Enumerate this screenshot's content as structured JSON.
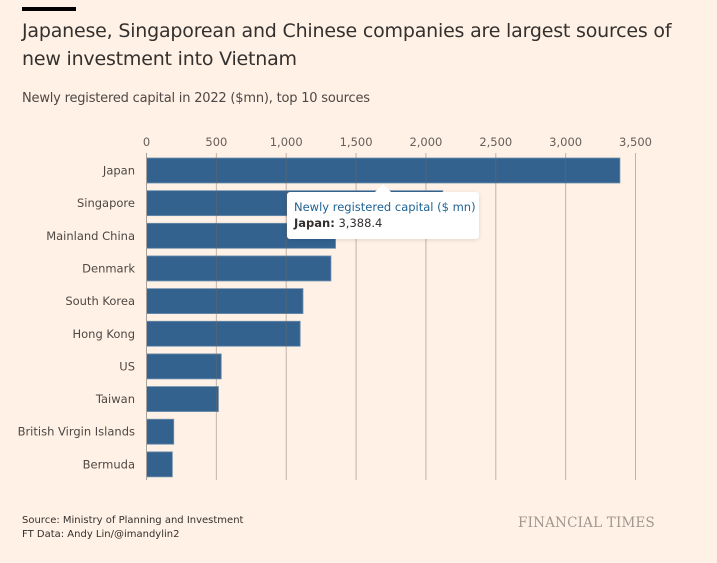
{
  "header": {
    "title": "Japanese, Singaporean and Chinese companies are largest sources of new investment into Vietnam",
    "subtitle": "Newly registered capital in 2022 ($mn), top 10 sources"
  },
  "chart_data": {
    "type": "bar",
    "orientation": "horizontal",
    "title": "Japanese, Singaporean and Chinese companies are largest sources of new investment into Vietnam",
    "subtitle": "Newly registered capital in 2022 ($mn), top 10 sources",
    "xlabel": "",
    "ylabel": "",
    "categories": [
      "Japan",
      "Singapore",
      "Mainland China",
      "Denmark",
      "South Korea",
      "Hong Kong",
      "US",
      "Taiwan",
      "British Virgin Islands",
      "Bermuda"
    ],
    "series": [
      {
        "name": "Newly registered capital ($ mn)",
        "values": [
          3388.4,
          2120,
          1353,
          1320,
          1120,
          1100,
          535,
          515,
          195,
          185
        ]
      }
    ],
    "xlim": [
      0,
      3500
    ],
    "xticks": [
      0,
      500,
      1000,
      1500,
      2000,
      2500,
      3000,
      3500
    ],
    "xtick_labels": [
      "0",
      "500",
      "1,000",
      "1,500",
      "2,000",
      "2,500",
      "3,000",
      "3,500"
    ],
    "axis_position": "top",
    "grid": true,
    "bar_color": "#33628f",
    "legend": "none"
  },
  "tooltip": {
    "title": "Newly registered capital ($ mn)",
    "category": "Japan:",
    "value": "3,388.4"
  },
  "footer": {
    "source": "Source: Ministry of Planning and Investment",
    "credit": "FT Data: Andy Lin/@imandylin2",
    "logo": "FINANCIAL TIMES"
  }
}
